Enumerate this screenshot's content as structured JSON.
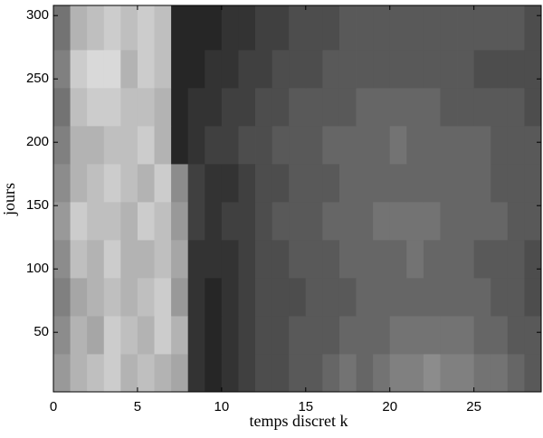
{
  "chart_data": {
    "type": "heatmap",
    "xlabel": "temps discret k",
    "ylabel": "jours",
    "xlim": [
      0,
      29
    ],
    "ylim": [
      3,
      308
    ],
    "xticks": [
      0,
      5,
      10,
      15,
      20,
      25
    ],
    "yticks": [
      50,
      100,
      150,
      200,
      250,
      300
    ],
    "colormap": "gray",
    "clim": [
      0,
      1
    ],
    "xbins": [
      0,
      1,
      2,
      3,
      4,
      5,
      6,
      7,
      8,
      9,
      10,
      11,
      12,
      13,
      14,
      15,
      16,
      17,
      18,
      19,
      20,
      21,
      22,
      23,
      24,
      25,
      26,
      27,
      28,
      29
    ],
    "ybins": [
      3,
      33,
      63,
      93,
      123,
      153,
      183,
      213,
      243,
      273,
      308
    ],
    "values": [
      [
        0.6,
        0.7,
        0.75,
        0.8,
        0.7,
        0.75,
        0.7,
        0.65,
        0.2,
        0.15,
        0.2,
        0.25,
        0.3,
        0.3,
        0.35,
        0.35,
        0.4,
        0.45,
        0.4,
        0.45,
        0.5,
        0.5,
        0.55,
        0.5,
        0.5,
        0.45,
        0.45,
        0.4,
        0.35
      ],
      [
        0.55,
        0.7,
        0.65,
        0.8,
        0.75,
        0.7,
        0.8,
        0.7,
        0.2,
        0.15,
        0.2,
        0.25,
        0.3,
        0.3,
        0.35,
        0.35,
        0.35,
        0.4,
        0.4,
        0.4,
        0.45,
        0.45,
        0.45,
        0.45,
        0.45,
        0.4,
        0.4,
        0.35,
        0.35
      ],
      [
        0.5,
        0.65,
        0.7,
        0.75,
        0.7,
        0.75,
        0.8,
        0.6,
        0.2,
        0.15,
        0.2,
        0.25,
        0.3,
        0.3,
        0.3,
        0.35,
        0.35,
        0.35,
        0.4,
        0.4,
        0.4,
        0.4,
        0.4,
        0.4,
        0.4,
        0.4,
        0.35,
        0.35,
        0.3
      ],
      [
        0.55,
        0.75,
        0.7,
        0.8,
        0.7,
        0.7,
        0.75,
        0.65,
        0.2,
        0.2,
        0.2,
        0.25,
        0.3,
        0.3,
        0.35,
        0.35,
        0.35,
        0.4,
        0.4,
        0.4,
        0.4,
        0.45,
        0.4,
        0.4,
        0.4,
        0.35,
        0.35,
        0.35,
        0.3
      ],
      [
        0.6,
        0.8,
        0.75,
        0.75,
        0.7,
        0.8,
        0.75,
        0.6,
        0.25,
        0.2,
        0.25,
        0.25,
        0.3,
        0.35,
        0.35,
        0.35,
        0.4,
        0.4,
        0.4,
        0.45,
        0.45,
        0.45,
        0.45,
        0.4,
        0.4,
        0.4,
        0.4,
        0.35,
        0.35
      ],
      [
        0.55,
        0.7,
        0.75,
        0.8,
        0.75,
        0.7,
        0.8,
        0.55,
        0.25,
        0.2,
        0.2,
        0.25,
        0.3,
        0.3,
        0.35,
        0.35,
        0.35,
        0.4,
        0.4,
        0.4,
        0.4,
        0.4,
        0.4,
        0.4,
        0.4,
        0.4,
        0.35,
        0.35,
        0.35
      ],
      [
        0.5,
        0.7,
        0.7,
        0.75,
        0.75,
        0.8,
        0.7,
        0.15,
        0.2,
        0.25,
        0.25,
        0.3,
        0.3,
        0.35,
        0.35,
        0.35,
        0.4,
        0.4,
        0.4,
        0.4,
        0.45,
        0.4,
        0.4,
        0.4,
        0.4,
        0.4,
        0.35,
        0.35,
        0.35
      ],
      [
        0.45,
        0.75,
        0.8,
        0.8,
        0.75,
        0.75,
        0.7,
        0.15,
        0.2,
        0.2,
        0.25,
        0.25,
        0.3,
        0.3,
        0.35,
        0.35,
        0.35,
        0.35,
        0.4,
        0.4,
        0.4,
        0.4,
        0.4,
        0.35,
        0.35,
        0.35,
        0.35,
        0.35,
        0.3
      ],
      [
        0.5,
        0.8,
        0.85,
        0.85,
        0.7,
        0.8,
        0.75,
        0.15,
        0.15,
        0.2,
        0.2,
        0.25,
        0.25,
        0.3,
        0.3,
        0.3,
        0.35,
        0.35,
        0.35,
        0.35,
        0.35,
        0.35,
        0.35,
        0.35,
        0.35,
        0.3,
        0.3,
        0.3,
        0.3
      ],
      [
        0.45,
        0.7,
        0.75,
        0.8,
        0.75,
        0.8,
        0.75,
        0.15,
        0.15,
        0.15,
        0.2,
        0.2,
        0.25,
        0.25,
        0.3,
        0.3,
        0.3,
        0.35,
        0.35,
        0.35,
        0.35,
        0.35,
        0.35,
        0.35,
        0.35,
        0.35,
        0.35,
        0.35,
        0.3
      ]
    ]
  }
}
